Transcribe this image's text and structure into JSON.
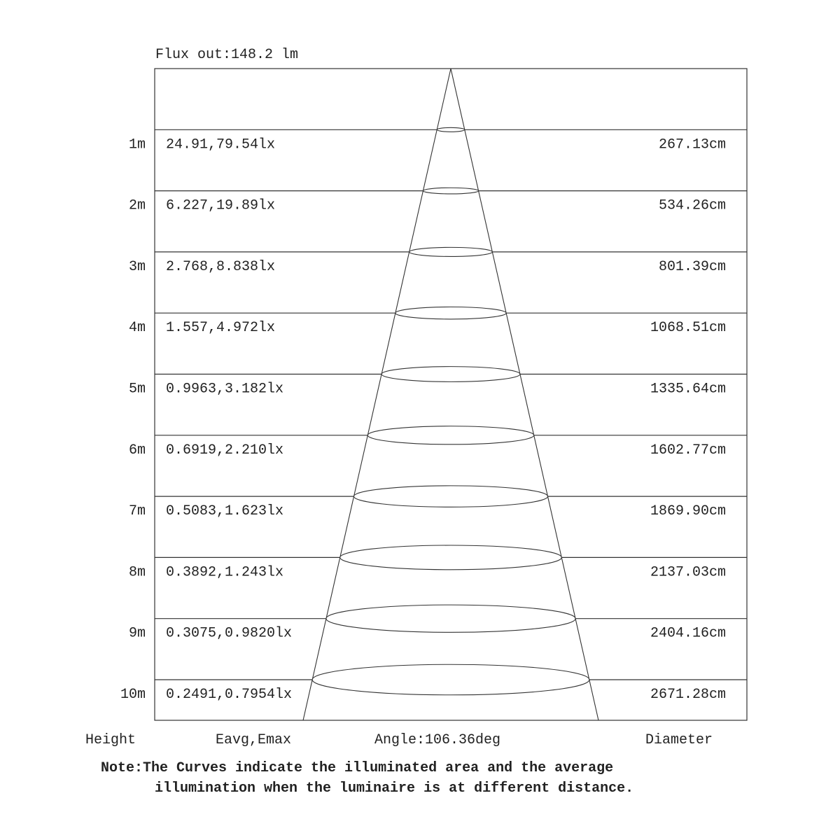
{
  "flux_label": "Flux out:148.2 lm",
  "rows": [
    {
      "height": "1m",
      "eavg_emax": "24.91,79.54lx",
      "diameter": "267.13cm"
    },
    {
      "height": "2m",
      "eavg_emax": "6.227,19.89lx",
      "diameter": "534.26cm"
    },
    {
      "height": "3m",
      "eavg_emax": "2.768,8.838lx",
      "diameter": "801.39cm"
    },
    {
      "height": "4m",
      "eavg_emax": "1.557,4.972lx",
      "diameter": "1068.51cm"
    },
    {
      "height": "5m",
      "eavg_emax": "0.9963,3.182lx",
      "diameter": "1335.64cm"
    },
    {
      "height": "6m",
      "eavg_emax": "0.6919,2.210lx",
      "diameter": "1602.77cm"
    },
    {
      "height": "7m",
      "eavg_emax": "0.5083,1.623lx",
      "diameter": "1869.90cm"
    },
    {
      "height": "8m",
      "eavg_emax": "0.3892,1.243lx",
      "diameter": "2137.03cm"
    },
    {
      "height": "9m",
      "eavg_emax": "0.3075,0.9820lx",
      "diameter": "2404.16cm"
    },
    {
      "height": "10m",
      "eavg_emax": "0.2491,0.7954lx",
      "diameter": "2671.28cm"
    }
  ],
  "footer": {
    "height_label": "Height",
    "eavg_label": "Eavg,Emax",
    "angle_label": "Angle:106.36deg",
    "diameter_label": "Diameter"
  },
  "note": {
    "line1": "Note:The Curves indicate the illuminated area and the average",
    "line2": "illumination when the luminaire is at different distance."
  },
  "colors": {
    "line": "#333333",
    "text": "#222222"
  }
}
